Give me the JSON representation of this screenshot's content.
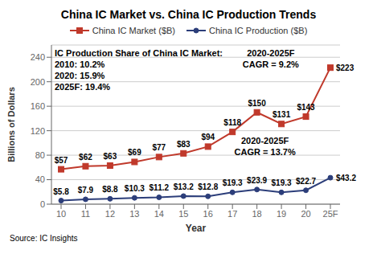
{
  "chart_data": {
    "type": "line",
    "title": "China IC Market vs. China IC Production Trends",
    "categories": [
      "10",
      "11",
      "12",
      "13",
      "14",
      "15",
      "16",
      "17",
      "18",
      "19",
      "20",
      "25F"
    ],
    "series": [
      {
        "name": "China IC Market ($B)",
        "color": "#c0392b",
        "marker": "square",
        "values": [
          57,
          62,
          63,
          69,
          77,
          83,
          94,
          118,
          150,
          131,
          143,
          223
        ],
        "value_labels": [
          "$57",
          "$62",
          "$63",
          "$69",
          "$77",
          "$83",
          "$94",
          "$118",
          "$150",
          "$131",
          "$143",
          "$223"
        ]
      },
      {
        "name": "China IC Production ($B)",
        "color": "#2c3e7a",
        "marker": "circle",
        "values": [
          5.8,
          7.9,
          8.8,
          10.3,
          11.2,
          13.2,
          12.8,
          19.3,
          23.9,
          19.3,
          22.7,
          43.2
        ],
        "value_labels": [
          "$5.8",
          "$7.9",
          "$8.8",
          "$10.3",
          "$11.2",
          "$13.2",
          "$12.8",
          "$19.3",
          "$23.9",
          "$19.3",
          "$22.7",
          "$43.2"
        ]
      }
    ],
    "xlabel": "Year",
    "ylabel": "Billions of Dollars",
    "ylim": [
      0,
      260
    ],
    "yticks": [
      0,
      40,
      80,
      120,
      160,
      200,
      240
    ],
    "grid": true,
    "legend": "top",
    "data_labels": true,
    "annotations": [
      "IC Production Share of China IC Market:",
      "2010: 10.2%",
      "2020: 15.9%",
      "2025F: 19.4%",
      "2020-2025F\nCAGR = 9.2%",
      "2020-2025F\nCAGR = 13.7%",
      "Source: IC Insights"
    ]
  }
}
